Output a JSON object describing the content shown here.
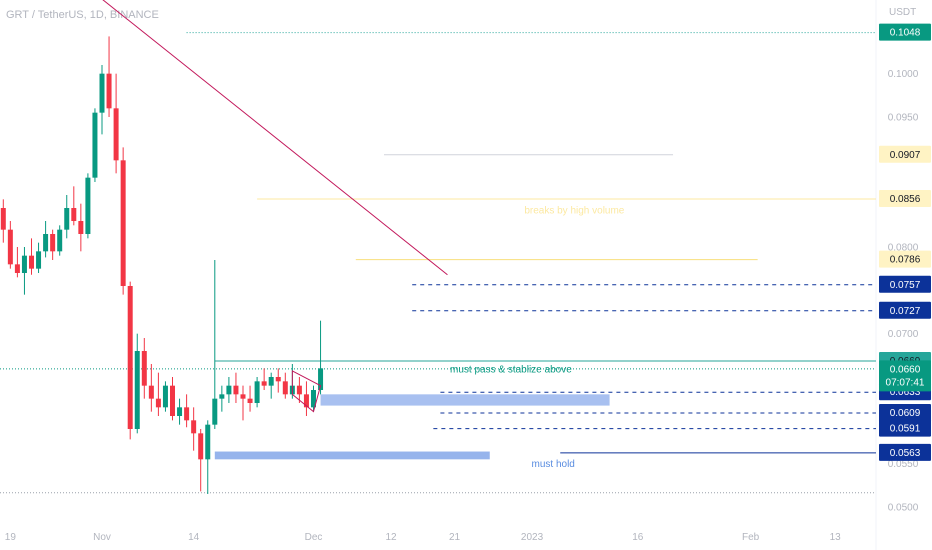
{
  "header": {
    "symbol": "GRT / TetherUS, 1D, BINANCE",
    "unit": "USDT"
  },
  "chart_data": {
    "type": "candlestick",
    "ylim": [
      0.0485,
      0.1085
    ],
    "x_ticks": [
      {
        "label": "19",
        "day": -13
      },
      {
        "label": "Nov",
        "day": 0
      },
      {
        "label": "14",
        "day": 13
      },
      {
        "label": "Dec",
        "day": 30
      },
      {
        "label": "12",
        "day": 41
      },
      {
        "label": "21",
        "day": 50
      },
      {
        "label": "2023",
        "day": 61
      },
      {
        "label": "16",
        "day": 76
      },
      {
        "label": "Feb",
        "day": 92
      },
      {
        "label": "13",
        "day": 104
      }
    ],
    "y_ticks": [
      "0.1000",
      "0.0950",
      "0.0800",
      "0.0700",
      "0.0550",
      "0.0500"
    ],
    "candles": [
      {
        "day": -15,
        "o": 0.0875,
        "h": 0.088,
        "c": 0.0845,
        "l": 0.0838
      },
      {
        "day": -14,
        "o": 0.0845,
        "h": 0.0855,
        "c": 0.082,
        "l": 0.0805
      },
      {
        "day": -13,
        "o": 0.082,
        "h": 0.083,
        "c": 0.078,
        "l": 0.0775
      },
      {
        "day": -12,
        "o": 0.078,
        "h": 0.08,
        "c": 0.077,
        "l": 0.0765
      },
      {
        "day": -11,
        "o": 0.077,
        "h": 0.08,
        "c": 0.079,
        "l": 0.0745
      },
      {
        "day": -10,
        "o": 0.079,
        "h": 0.081,
        "c": 0.0775,
        "l": 0.0768
      },
      {
        "day": -9,
        "o": 0.0775,
        "h": 0.0805,
        "c": 0.0795,
        "l": 0.077
      },
      {
        "day": -8,
        "o": 0.0795,
        "h": 0.083,
        "c": 0.0815,
        "l": 0.0788
      },
      {
        "day": -7,
        "o": 0.0815,
        "h": 0.082,
        "c": 0.0795,
        "l": 0.0785
      },
      {
        "day": -6,
        "o": 0.0795,
        "h": 0.0825,
        "c": 0.082,
        "l": 0.079
      },
      {
        "day": -5,
        "o": 0.082,
        "h": 0.086,
        "c": 0.0845,
        "l": 0.081
      },
      {
        "day": -4,
        "o": 0.0845,
        "h": 0.087,
        "c": 0.083,
        "l": 0.0825
      },
      {
        "day": -3,
        "o": 0.083,
        "h": 0.085,
        "c": 0.0815,
        "l": 0.0795
      },
      {
        "day": -2,
        "o": 0.0815,
        "h": 0.0885,
        "c": 0.088,
        "l": 0.081
      },
      {
        "day": -1,
        "o": 0.088,
        "h": 0.096,
        "c": 0.0955,
        "l": 0.0875
      },
      {
        "day": 0,
        "o": 0.0955,
        "h": 0.101,
        "c": 0.1,
        "l": 0.093
      },
      {
        "day": 1,
        "o": 0.1,
        "h": 0.1043,
        "c": 0.096,
        "l": 0.095
      },
      {
        "day": 2,
        "o": 0.096,
        "h": 0.1,
        "c": 0.09,
        "l": 0.0885
      },
      {
        "day": 3,
        "o": 0.09,
        "h": 0.0915,
        "c": 0.0755,
        "l": 0.0745
      },
      {
        "day": 4,
        "o": 0.0755,
        "h": 0.076,
        "c": 0.059,
        "l": 0.0578
      },
      {
        "day": 5,
        "o": 0.059,
        "h": 0.07,
        "c": 0.068,
        "l": 0.0585
      },
      {
        "day": 6,
        "o": 0.068,
        "h": 0.0695,
        "c": 0.064,
        "l": 0.0625
      },
      {
        "day": 7,
        "o": 0.064,
        "h": 0.0665,
        "c": 0.0625,
        "l": 0.061
      },
      {
        "day": 8,
        "o": 0.0625,
        "h": 0.0655,
        "c": 0.0615,
        "l": 0.0605
      },
      {
        "day": 9,
        "o": 0.0615,
        "h": 0.0645,
        "c": 0.064,
        "l": 0.061
      },
      {
        "day": 10,
        "o": 0.064,
        "h": 0.065,
        "c": 0.0605,
        "l": 0.06
      },
      {
        "day": 11,
        "o": 0.0605,
        "h": 0.0625,
        "c": 0.0615,
        "l": 0.0595
      },
      {
        "day": 12,
        "o": 0.0615,
        "h": 0.063,
        "c": 0.06,
        "l": 0.0592
      },
      {
        "day": 13,
        "o": 0.06,
        "h": 0.0615,
        "c": 0.0585,
        "l": 0.0565
      },
      {
        "day": 14,
        "o": 0.0585,
        "h": 0.059,
        "c": 0.0555,
        "l": 0.0518
      },
      {
        "day": 15,
        "o": 0.0555,
        "h": 0.06,
        "c": 0.0595,
        "l": 0.0515
      },
      {
        "day": 16,
        "o": 0.0595,
        "h": 0.0785,
        "c": 0.0625,
        "l": 0.059
      },
      {
        "day": 17,
        "o": 0.0625,
        "h": 0.064,
        "c": 0.063,
        "l": 0.061
      },
      {
        "day": 18,
        "o": 0.063,
        "h": 0.065,
        "c": 0.064,
        "l": 0.062
      },
      {
        "day": 19,
        "o": 0.064,
        "h": 0.0655,
        "c": 0.063,
        "l": 0.062
      },
      {
        "day": 20,
        "o": 0.063,
        "h": 0.064,
        "c": 0.0625,
        "l": 0.06
      },
      {
        "day": 21,
        "o": 0.0625,
        "h": 0.064,
        "c": 0.062,
        "l": 0.061
      },
      {
        "day": 22,
        "o": 0.062,
        "h": 0.065,
        "c": 0.0645,
        "l": 0.0615
      },
      {
        "day": 23,
        "o": 0.0645,
        "h": 0.066,
        "c": 0.064,
        "l": 0.0635
      },
      {
        "day": 24,
        "o": 0.064,
        "h": 0.0655,
        "c": 0.065,
        "l": 0.0625
      },
      {
        "day": 25,
        "o": 0.065,
        "h": 0.066,
        "c": 0.0645,
        "l": 0.0632
      },
      {
        "day": 26,
        "o": 0.0645,
        "h": 0.0655,
        "c": 0.063,
        "l": 0.0625
      },
      {
        "day": 27,
        "o": 0.063,
        "h": 0.0665,
        "c": 0.064,
        "l": 0.0625
      },
      {
        "day": 28,
        "o": 0.064,
        "h": 0.065,
        "c": 0.063,
        "l": 0.062
      },
      {
        "day": 29,
        "o": 0.063,
        "h": 0.0645,
        "c": 0.0615,
        "l": 0.0605
      },
      {
        "day": 30,
        "o": 0.0615,
        "h": 0.064,
        "c": 0.0635,
        "l": 0.061
      },
      {
        "day": 31,
        "o": 0.0635,
        "h": 0.0715,
        "c": 0.066,
        "l": 0.063
      }
    ],
    "levels": [
      {
        "value": 0.1048,
        "label": "0.1048",
        "tag_bg": "#089981",
        "tag_fg": "#ffffff",
        "line_color": "#26a69a",
        "style": "dotted",
        "from_day": 12
      },
      {
        "value": 0.0907,
        "label": "0.0907",
        "tag_bg": "#fff3c4",
        "tag_fg": "#131722",
        "line_color": "#d1d4dc",
        "style": "solid",
        "from_day": 40,
        "to_day": 81
      },
      {
        "value": 0.0856,
        "label": "0.0856",
        "tag_bg": "#fff3c4",
        "tag_fg": "#131722",
        "line_color": "#fce9a2",
        "style": "solid",
        "from_day": 22
      },
      {
        "value": 0.0786,
        "label": "0.0786",
        "tag_bg": "#fff3c4",
        "tag_fg": "#131722",
        "line_color": "#f8df7c",
        "style": "solid",
        "from_day": 36,
        "to_day": 93
      },
      {
        "value": 0.0757,
        "label": "0.0757",
        "tag_bg": "#0c3299",
        "tag_fg": "#ffffff",
        "line_color": "#0c3299",
        "style": "dashed",
        "from_day": 44
      },
      {
        "value": 0.0727,
        "label": "0.0727",
        "tag_bg": "#0c3299",
        "tag_fg": "#ffffff",
        "line_color": "#0c3299",
        "style": "dashed",
        "from_day": 44
      },
      {
        "value": 0.0669,
        "label": "0.0669",
        "tag_bg": "#26a69a",
        "tag_fg": "#131722",
        "line_color": "#26a69a",
        "style": "solid",
        "from_day": 16
      },
      {
        "value": 0.0633,
        "label": "0.0633",
        "tag_bg": "#0c3299",
        "tag_fg": "#ffffff",
        "line_color": "#0c3299",
        "style": "dashed",
        "from_day": 48
      },
      {
        "value": 0.0609,
        "label": "0.0609",
        "tag_bg": "#0c3299",
        "tag_fg": "#ffffff",
        "line_color": "#0c3299",
        "style": "dashed",
        "from_day": 48
      },
      {
        "value": 0.0591,
        "label": "0.0591",
        "tag_bg": "#0c3299",
        "tag_fg": "#ffffff",
        "line_color": "#0c3299",
        "style": "dashed",
        "from_day": 47
      },
      {
        "value": 0.0563,
        "label": "0.0563",
        "tag_bg": "#0c3299",
        "tag_fg": "#ffffff",
        "line_color": "#0c3299",
        "style": "solid",
        "from_day": 65
      }
    ],
    "current_price": {
      "value": 0.066,
      "label": "0.0660",
      "countdown": "07:07:41",
      "color": "#089981"
    },
    "bottom_line": 0.0517,
    "zones": [
      {
        "from_day": 31,
        "to_day": 72,
        "low": 0.0617,
        "high": 0.063,
        "color": "#a8c0f0"
      },
      {
        "from_day": 16,
        "to_day": 55,
        "low": 0.0555,
        "high": 0.0564,
        "color": "#96b4ec"
      }
    ],
    "trendline": {
      "from_day": -6,
      "from_value": 0.1125,
      "to_day": 49,
      "to_value": 0.0768,
      "color": "#c2185b"
    },
    "wedge": {
      "points": [
        [
          27,
          0.0657
        ],
        [
          31,
          0.064
        ],
        [
          30,
          0.061
        ],
        [
          27,
          0.063
        ]
      ],
      "color": "#c2185b"
    },
    "annotations": [
      {
        "text": "must pass & stablize above",
        "day": 58,
        "value": 0.066,
        "color": "#089981",
        "bg": null
      },
      {
        "text": "must hold",
        "day": 64,
        "value": 0.0551,
        "color": "#5a8de0",
        "bg": "#ffffff"
      },
      {
        "text": "breaks by high volume",
        "day": 67,
        "value": 0.0843,
        "color": "#fce9a2",
        "bg": null
      }
    ],
    "colors": {
      "up": "#089981",
      "down": "#f23645",
      "axis_text": "#b2b5be"
    }
  }
}
